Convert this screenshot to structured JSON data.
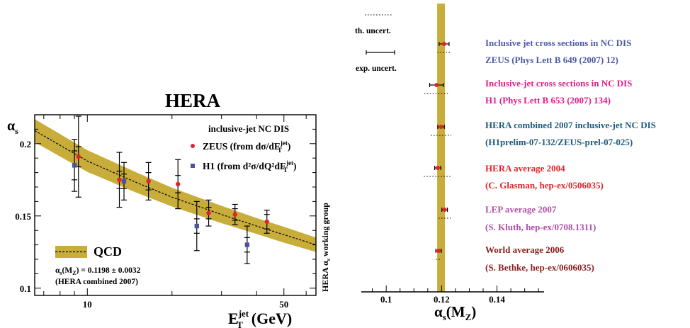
{
  "colors": {
    "band": "#c8ad3a",
    "red": "#e1242b",
    "blue": "#4a54a0",
    "zeus_text": "#4d5aa6",
    "h1_text": "#e0208a",
    "hera_comb_text": "#1f5a7c",
    "hera_avg_text": "#e1242b",
    "lep_text": "#b04fa6",
    "world_text": "#8a1c1c"
  },
  "left_panel": {
    "title": "HERA",
    "ylabel": "α",
    "ylabel_sub": "s",
    "xlabel_main": "E",
    "xlabel_sup": "jet",
    "xlabel_sub": "T",
    "xlabel_unit": "(GeV)",
    "subtitle": "inclusive-jet NC DIS",
    "legend_zeus_pre": "ZEUS  (from dσ/dE",
    "legend_h1_pre": "H1  (from d²σ/dQ²dE",
    "legend_sup": "jet",
    "legend_sub": "T",
    "legend_close": ")",
    "qcd_label": "QCD",
    "qcd_result": "α(M) = 0.1198 ± 0.0032",
    "qcd_result_prefix": "α",
    "qcd_result_s": "s",
    "qcd_result_mz": "(M",
    "qcd_result_z": "Z",
    "qcd_result_val": ") = 0.1198 ± 0.0032",
    "qcd_note": "(HERA combined 2007)",
    "side_label": "HERA α working group",
    "side_pre": "HERA α",
    "side_s": "s",
    "side_post": " working group",
    "ytick_labels": [
      "0.1",
      "0.15",
      "0.2"
    ],
    "xtick_labels": [
      "10",
      "50"
    ]
  },
  "right_panel": {
    "xlabel_main": "α",
    "xlabel_sub": "s",
    "xlabel_paren": "(M",
    "xlabel_z": "Z",
    "xlabel_close": ")",
    "th_uncert": "th. uncert.",
    "exp_uncert": "exp. uncert.",
    "xtick_labels": [
      "0.1",
      "0.12",
      "0.14"
    ],
    "entries": [
      {
        "line1": "Inclusive jet cross sections in NC DIS",
        "line2": "ZEUS (Phys Lett B 649 (2007) 12)"
      },
      {
        "line1": "Inclusive-jet cross sections in NC DIS",
        "line2": "H1 (Phys Lett B 653 (2007) 134)"
      },
      {
        "line1": "HERA combined 2007 inclusive-jet NC DIS",
        "line2": "(H1prelim-07-132/ZEUS-prel-07-025)"
      },
      {
        "line1": "HERA average 2004",
        "line2": "(C. Glasman, hep-ex/0506035)"
      },
      {
        "line1": "LEP average 2007",
        "line2": "(S. Kluth, hep-ex/0708.1311)"
      },
      {
        "line1": "World average 2006",
        "line2": "(S. Bethke, hep-ex/0606035)"
      }
    ]
  },
  "chart_data": [
    {
      "type": "scatter",
      "title": "HERA",
      "xlabel": "E_T^jet (GeV)",
      "ylabel": "α_s",
      "xscale": "log",
      "xlim": [
        6.5,
        65
      ],
      "ylim": [
        0.095,
        0.22
      ],
      "series": [
        {
          "name": "ZEUS  (from dσ/dE_T^jet)",
          "marker": "circle",
          "x": [
            9.3,
            13.0,
            16.5,
            21.0,
            27.0,
            33.5,
            43.5
          ],
          "y": [
            0.191,
            0.175,
            0.174,
            0.172,
            0.152,
            0.151,
            0.146
          ],
          "err_stat": [
            0.007,
            0.006,
            0.006,
            0.006,
            0.004,
            0.004,
            0.005
          ],
          "err_tot": [
            0.028,
            0.019,
            0.013,
            0.017,
            0.009,
            0.007,
            0.008
          ]
        },
        {
          "name": "H1  (from d²σ/dQ²dE_T^jet)",
          "marker": "square",
          "x": [
            9.0,
            13.5,
            24.5,
            37.0
          ],
          "y": [
            0.185,
            0.174,
            0.143,
            0.13
          ],
          "err_stat": [
            0.01,
            0.005,
            0.005,
            0.005
          ],
          "err_tot": [
            0.018,
            0.013,
            0.017,
            0.013
          ]
        }
      ],
      "band": {
        "name": "QCD",
        "x": [
          6.5,
          10,
          15,
          20,
          30,
          40,
          50,
          65
        ],
        "center": [
          0.209,
          0.188,
          0.173,
          0.163,
          0.151,
          0.143,
          0.137,
          0.13
        ],
        "halfwidth": [
          0.008,
          0.0075,
          0.007,
          0.0065,
          0.006,
          0.0055,
          0.0055,
          0.005
        ]
      },
      "annotations": [
        "inclusive-jet NC DIS",
        "α_s(M_Z) = 0.1198 ± 0.0032",
        "(HERA combined 2007)",
        "HERA α_s working group"
      ]
    },
    {
      "type": "scatter",
      "xlabel": "α_s(M_Z)",
      "xlim": [
        0.091,
        0.157
      ],
      "band": {
        "center": 0.1198,
        "halfwidth": 0.0014
      },
      "points": [
        {
          "value": 0.1209,
          "exp_err": 0.0018,
          "th_err": 0.0024
        },
        {
          "value": 0.1182,
          "exp_err": 0.0025,
          "th_err": 0.0045
        },
        {
          "value": 0.1198,
          "exp_err": 0.0012,
          "th_err": 0.0037
        },
        {
          "value": 0.1186,
          "exp_err": 0.0011,
          "th_err": 0.005
        },
        {
          "value": 0.1211,
          "exp_err": 0.001,
          "th_err": 0.0022
        },
        {
          "value": 0.1189,
          "exp_err": 0.001,
          "th_err": 0.001
        }
      ]
    }
  ]
}
